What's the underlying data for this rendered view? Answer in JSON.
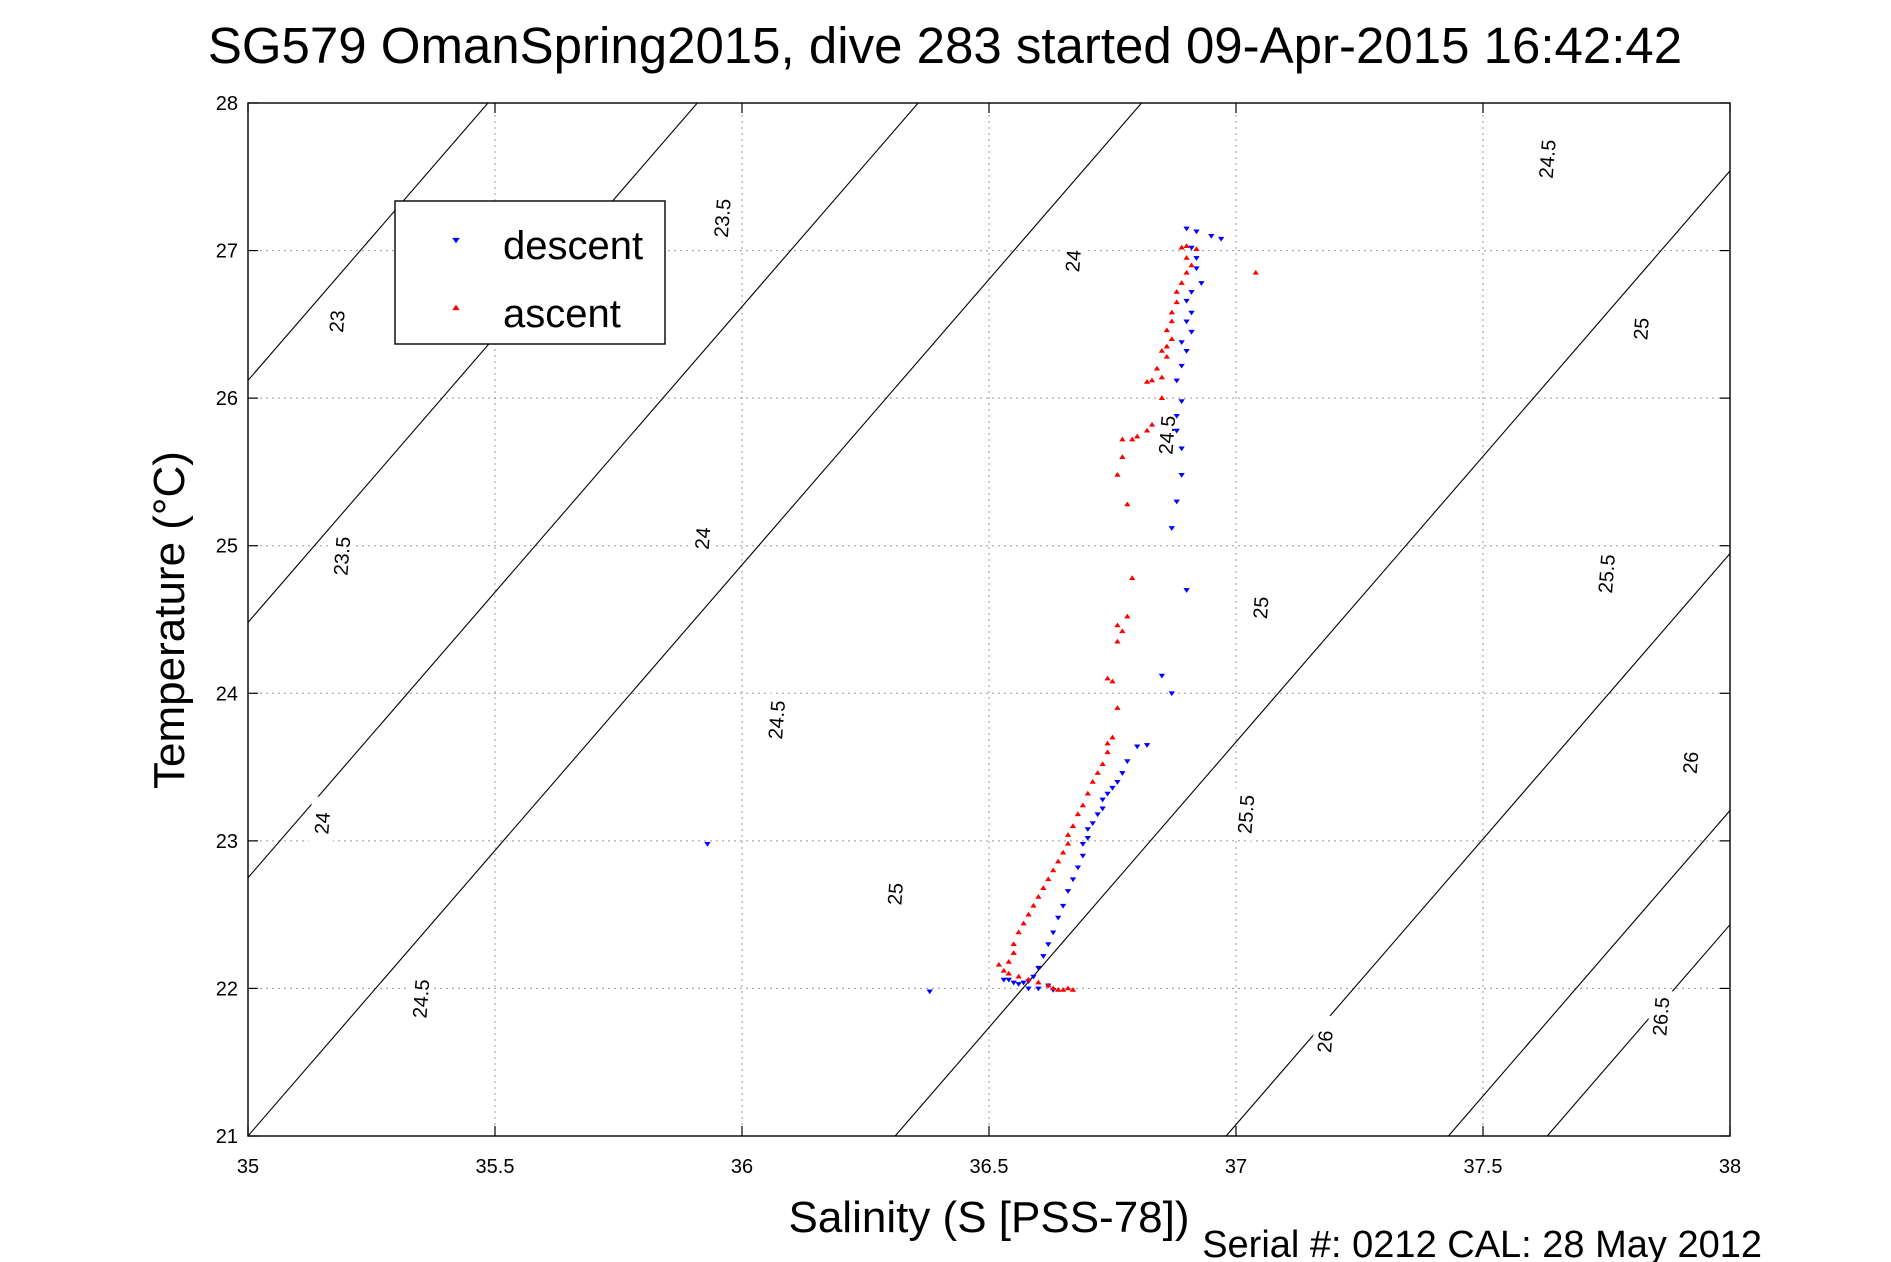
{
  "chart_data": {
    "type": "scatter",
    "title": "SG579 OmanSpring2015, dive 283 started 09-Apr-2015 16:42:42",
    "xlabel": "Salinity (S [PSS-78])",
    "ylabel": "Temperature (°C)",
    "xlim": [
      35,
      38
    ],
    "ylim": [
      21,
      28
    ],
    "xticks": [
      "35",
      "35.5",
      "36",
      "36.5",
      "37",
      "37.5",
      "38"
    ],
    "yticks": [
      "21",
      "22",
      "23",
      "24",
      "25",
      "26",
      "27",
      "28"
    ],
    "grid": true,
    "legend_position": "top-left",
    "footer": "Serial #: 0212  CAL: 28 May 2012",
    "density_contours": [
      23,
      23.5,
      24,
      24.5,
      25,
      25.5,
      26,
      26.5
    ],
    "contour_labels": [
      {
        "text": "23",
        "s": 35.18,
        "t": 26.52
      },
      {
        "text": "23.5",
        "s": 35.96,
        "t": 27.22
      },
      {
        "text": "24",
        "s": 36.67,
        "t": 26.93
      },
      {
        "text": "24.5",
        "s": 37.63,
        "t": 27.62
      },
      {
        "text": "23.5",
        "s": 35.19,
        "t": 24.93
      },
      {
        "text": "24",
        "s": 35.92,
        "t": 25.05
      },
      {
        "text": "24.5",
        "s": 36.86,
        "t": 25.75
      },
      {
        "text": "25",
        "s": 37.82,
        "t": 26.47
      },
      {
        "text": "24",
        "s": 35.15,
        "t": 23.12
      },
      {
        "text": "24.5",
        "s": 36.07,
        "t": 23.82
      },
      {
        "text": "25",
        "s": 37.05,
        "t": 24.58
      },
      {
        "text": "25.5",
        "s": 37.75,
        "t": 24.81
      },
      {
        "text": "24.5",
        "s": 35.35,
        "t": 21.93
      },
      {
        "text": "25",
        "s": 36.31,
        "t": 22.64
      },
      {
        "text": "25.5",
        "s": 37.02,
        "t": 23.18
      },
      {
        "text": "26",
        "s": 37.92,
        "t": 23.53
      },
      {
        "text": "26",
        "s": 37.18,
        "t": 21.64
      },
      {
        "text": "26.5",
        "s": 37.86,
        "t": 21.81
      }
    ],
    "series": [
      {
        "name": "descent",
        "color": "#0000ff",
        "marker": "triangle-down",
        "points": [
          [
            36.9,
            27.15
          ],
          [
            36.92,
            27.13
          ],
          [
            36.95,
            27.1
          ],
          [
            36.97,
            27.08
          ],
          [
            36.91,
            27.02
          ],
          [
            36.92,
            26.95
          ],
          [
            36.92,
            26.88
          ],
          [
            36.93,
            26.78
          ],
          [
            36.91,
            26.72
          ],
          [
            36.9,
            26.66
          ],
          [
            36.91,
            26.58
          ],
          [
            36.9,
            26.52
          ],
          [
            36.91,
            26.45
          ],
          [
            36.89,
            26.38
          ],
          [
            36.9,
            26.32
          ],
          [
            36.89,
            26.22
          ],
          [
            36.88,
            26.12
          ],
          [
            36.89,
            25.98
          ],
          [
            36.88,
            25.88
          ],
          [
            36.88,
            25.78
          ],
          [
            36.89,
            25.66
          ],
          [
            36.89,
            25.48
          ],
          [
            36.88,
            25.3
          ],
          [
            36.87,
            25.12
          ],
          [
            36.9,
            24.7
          ],
          [
            36.85,
            24.12
          ],
          [
            36.87,
            24.0
          ],
          [
            36.82,
            23.65
          ],
          [
            36.8,
            23.64
          ],
          [
            36.78,
            23.54
          ],
          [
            36.77,
            23.46
          ],
          [
            36.76,
            23.4
          ],
          [
            36.75,
            23.36
          ],
          [
            36.74,
            23.32
          ],
          [
            36.73,
            23.28
          ],
          [
            36.73,
            23.22
          ],
          [
            36.72,
            23.18
          ],
          [
            36.71,
            23.12
          ],
          [
            36.7,
            23.08
          ],
          [
            36.7,
            23.02
          ],
          [
            36.69,
            22.98
          ],
          [
            36.69,
            22.9
          ],
          [
            36.68,
            22.82
          ],
          [
            36.67,
            22.74
          ],
          [
            36.66,
            22.66
          ],
          [
            36.65,
            22.56
          ],
          [
            36.64,
            22.48
          ],
          [
            36.63,
            22.38
          ],
          [
            36.62,
            22.3
          ],
          [
            36.61,
            22.22
          ],
          [
            36.6,
            22.14
          ],
          [
            36.59,
            22.08
          ],
          [
            36.58,
            22.05
          ],
          [
            36.57,
            22.04
          ],
          [
            36.56,
            22.03
          ],
          [
            36.55,
            22.04
          ],
          [
            36.54,
            22.06
          ],
          [
            36.53,
            22.06
          ],
          [
            36.58,
            22.0
          ],
          [
            36.6,
            22.0
          ],
          [
            36.62,
            22.02
          ],
          [
            36.63,
            21.99
          ],
          [
            36.38,
            21.98
          ],
          [
            35.93,
            22.98
          ]
        ]
      },
      {
        "name": "ascent",
        "color": "#ff0000",
        "marker": "triangle-up",
        "points": [
          [
            36.9,
            27.03
          ],
          [
            36.89,
            27.02
          ],
          [
            36.92,
            27.01
          ],
          [
            36.9,
            26.95
          ],
          [
            36.91,
            26.9
          ],
          [
            36.9,
            26.85
          ],
          [
            36.89,
            26.78
          ],
          [
            36.88,
            26.72
          ],
          [
            36.88,
            26.65
          ],
          [
            36.87,
            26.58
          ],
          [
            36.87,
            26.52
          ],
          [
            36.86,
            26.46
          ],
          [
            36.87,
            26.4
          ],
          [
            36.86,
            26.35
          ],
          [
            36.85,
            26.32
          ],
          [
            36.86,
            26.28
          ],
          [
            36.84,
            26.2
          ],
          [
            36.85,
            26.14
          ],
          [
            36.83,
            26.12
          ],
          [
            36.82,
            26.11
          ],
          [
            37.04,
            26.85
          ],
          [
            36.85,
            26.0
          ],
          [
            36.83,
            25.82
          ],
          [
            36.82,
            25.78
          ],
          [
            36.8,
            25.74
          ],
          [
            36.79,
            25.72
          ],
          [
            36.77,
            25.72
          ],
          [
            36.77,
            25.6
          ],
          [
            36.76,
            25.48
          ],
          [
            36.78,
            25.28
          ],
          [
            36.79,
            24.78
          ],
          [
            36.78,
            24.52
          ],
          [
            36.76,
            24.46
          ],
          [
            36.77,
            24.42
          ],
          [
            36.76,
            24.35
          ],
          [
            36.74,
            24.1
          ],
          [
            36.75,
            24.08
          ],
          [
            36.76,
            23.9
          ],
          [
            36.75,
            23.7
          ],
          [
            36.74,
            23.66
          ],
          [
            36.74,
            23.6
          ],
          [
            36.73,
            23.52
          ],
          [
            36.72,
            23.46
          ],
          [
            36.71,
            23.4
          ],
          [
            36.7,
            23.32
          ],
          [
            36.69,
            23.24
          ],
          [
            36.68,
            23.18
          ],
          [
            36.67,
            23.1
          ],
          [
            36.66,
            23.04
          ],
          [
            36.66,
            22.98
          ],
          [
            36.65,
            22.92
          ],
          [
            36.64,
            22.86
          ],
          [
            36.63,
            22.8
          ],
          [
            36.62,
            22.74
          ],
          [
            36.61,
            22.68
          ],
          [
            36.6,
            22.62
          ],
          [
            36.59,
            22.56
          ],
          [
            36.58,
            22.5
          ],
          [
            36.57,
            22.44
          ],
          [
            36.56,
            22.38
          ],
          [
            36.55,
            22.3
          ],
          [
            36.55,
            22.24
          ],
          [
            36.54,
            22.18
          ],
          [
            36.53,
            22.12
          ],
          [
            36.52,
            22.16
          ],
          [
            36.54,
            22.1
          ],
          [
            36.56,
            22.08
          ],
          [
            36.58,
            22.06
          ],
          [
            36.6,
            22.04
          ],
          [
            36.62,
            22.02
          ],
          [
            36.63,
            22.0
          ],
          [
            36.64,
            21.99
          ],
          [
            36.65,
            21.99
          ],
          [
            36.66,
            22.0
          ],
          [
            36.67,
            21.99
          ]
        ]
      }
    ]
  }
}
